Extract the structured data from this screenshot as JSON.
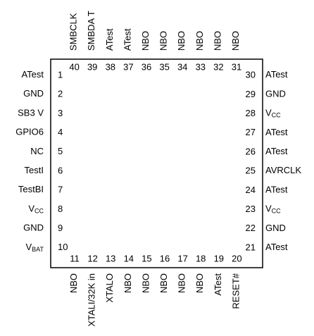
{
  "pins": {
    "left": [
      {
        "number": 1,
        "label": "ATest"
      },
      {
        "number": 2,
        "label": "GND"
      },
      {
        "number": 3,
        "label": "SB3 V"
      },
      {
        "number": 4,
        "label": "GPIO6"
      },
      {
        "number": 5,
        "label": "NC"
      },
      {
        "number": 6,
        "label": "TestI"
      },
      {
        "number": 7,
        "label": "TestBI"
      },
      {
        "number": 8,
        "label": "V",
        "sub": "CC"
      },
      {
        "number": 9,
        "label": "GND"
      },
      {
        "number": 10,
        "label": "V",
        "sub": "BAT"
      }
    ],
    "bottom": [
      {
        "number": 11,
        "label": "NBO"
      },
      {
        "number": 12,
        "label": "XTALI/32K in"
      },
      {
        "number": 13,
        "label": "XTALO"
      },
      {
        "number": 14,
        "label": "NBO"
      },
      {
        "number": 15,
        "label": "NBO"
      },
      {
        "number": 16,
        "label": "NBO"
      },
      {
        "number": 17,
        "label": "NBO"
      },
      {
        "number": 18,
        "label": "NBO"
      },
      {
        "number": 19,
        "label": "ATest"
      },
      {
        "number": 20,
        "label": "RESET#"
      }
    ],
    "right": [
      {
        "number": 21,
        "label": "ATest"
      },
      {
        "number": 22,
        "label": "GND"
      },
      {
        "number": 23,
        "label": "V",
        "sub": "CC"
      },
      {
        "number": 24,
        "label": "ATest"
      },
      {
        "number": 25,
        "label": "AVRCLK"
      },
      {
        "number": 26,
        "label": "ATest"
      },
      {
        "number": 27,
        "label": "ATest"
      },
      {
        "number": 28,
        "label": "V",
        "sub": "CC"
      },
      {
        "number": 29,
        "label": "GND"
      },
      {
        "number": 30,
        "label": "ATest"
      }
    ],
    "top": [
      {
        "number": 31,
        "label": "NBO"
      },
      {
        "number": 32,
        "label": "NBO"
      },
      {
        "number": 33,
        "label": "NBO"
      },
      {
        "number": 34,
        "label": "NBO"
      },
      {
        "number": 35,
        "label": "NBO"
      },
      {
        "number": 36,
        "label": "NBO"
      },
      {
        "number": 37,
        "label": "ATest"
      },
      {
        "number": 38,
        "label": "ATest"
      },
      {
        "number": 39,
        "label": "SMBDA T"
      },
      {
        "number": 40,
        "label": "SMBCLK"
      }
    ]
  }
}
